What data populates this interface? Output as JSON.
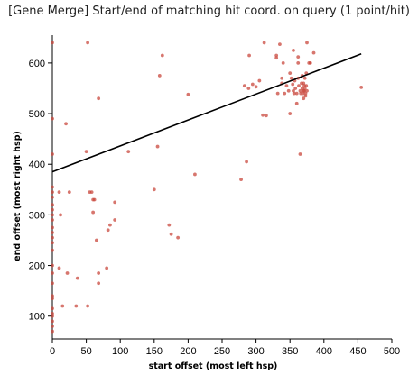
{
  "chart_data": {
    "type": "scatter",
    "title": "[Gene Merge] Start/end of matching hit coord. on query (1 point/hit)",
    "xlabel": "start offset (most left hsp)",
    "ylabel": "end offset (most right hsp)",
    "xlim": [
      0,
      500
    ],
    "ylim": [
      55,
      655
    ],
    "xticks": [
      0,
      50,
      100,
      150,
      200,
      250,
      300,
      350,
      400,
      450,
      500
    ],
    "yticks": [
      100,
      200,
      300,
      400,
      500,
      600
    ],
    "regression_line": {
      "x": [
        0,
        455
      ],
      "y": [
        385,
        618
      ]
    },
    "series": [
      {
        "values": [
          [
            0,
            70
          ],
          [
            0,
            80
          ],
          [
            0,
            90
          ],
          [
            0,
            100
          ],
          [
            0,
            105
          ],
          [
            0,
            115
          ],
          [
            0,
            135
          ],
          [
            0,
            140
          ],
          [
            0,
            165
          ],
          [
            0,
            185
          ],
          [
            0,
            200
          ],
          [
            0,
            230
          ],
          [
            0,
            245
          ],
          [
            0,
            255
          ],
          [
            0,
            265
          ],
          [
            0,
            275
          ],
          [
            0,
            290
          ],
          [
            0,
            300
          ],
          [
            0,
            310
          ],
          [
            0,
            320
          ],
          [
            0,
            335
          ],
          [
            0,
            345
          ],
          [
            0,
            355
          ],
          [
            0,
            420
          ],
          [
            0,
            490
          ],
          [
            0,
            640
          ],
          [
            10,
            195
          ],
          [
            10,
            345
          ],
          [
            12,
            300
          ],
          [
            15,
            120
          ],
          [
            20,
            480
          ],
          [
            22,
            185
          ],
          [
            25,
            345
          ],
          [
            35,
            120
          ],
          [
            37,
            175
          ],
          [
            50,
            425
          ],
          [
            52,
            640
          ],
          [
            52,
            120
          ],
          [
            55,
            345
          ],
          [
            58,
            345
          ],
          [
            60,
            330
          ],
          [
            60,
            305
          ],
          [
            62,
            330
          ],
          [
            65,
            250
          ],
          [
            68,
            185
          ],
          [
            68,
            165
          ],
          [
            68,
            530
          ],
          [
            80,
            195
          ],
          [
            82,
            270
          ],
          [
            85,
            280
          ],
          [
            92,
            325
          ],
          [
            92,
            290
          ],
          [
            112,
            425
          ],
          [
            150,
            350
          ],
          [
            155,
            435
          ],
          [
            158,
            575
          ],
          [
            162,
            615
          ],
          [
            172,
            280
          ],
          [
            175,
            262
          ],
          [
            185,
            255
          ],
          [
            200,
            538
          ],
          [
            210,
            380
          ],
          [
            278,
            370
          ],
          [
            283,
            555
          ],
          [
            286,
            405
          ],
          [
            289,
            550
          ],
          [
            290,
            615
          ],
          [
            295,
            558
          ],
          [
            300,
            553
          ],
          [
            305,
            565
          ],
          [
            310,
            497
          ],
          [
            312,
            640
          ],
          [
            315,
            496
          ],
          [
            330,
            615
          ],
          [
            330,
            610
          ],
          [
            332,
            540
          ],
          [
            335,
            637
          ],
          [
            338,
            570
          ],
          [
            338,
            560
          ],
          [
            340,
            600
          ],
          [
            342,
            540
          ],
          [
            345,
            555
          ],
          [
            348,
            545
          ],
          [
            350,
            580
          ],
          [
            350,
            500
          ],
          [
            352,
            570
          ],
          [
            354,
            558
          ],
          [
            355,
            625
          ],
          [
            355,
            545
          ],
          [
            356,
            540
          ],
          [
            357,
            565
          ],
          [
            358,
            550
          ],
          [
            360,
            540
          ],
          [
            360,
            520
          ],
          [
            362,
            612
          ],
          [
            362,
            600
          ],
          [
            362,
            570
          ],
          [
            363,
            555
          ],
          [
            365,
            420
          ],
          [
            365,
            545
          ],
          [
            366,
            540
          ],
          [
            367,
            560
          ],
          [
            368,
            575
          ],
          [
            368,
            550
          ],
          [
            369,
            540
          ],
          [
            370,
            545
          ],
          [
            370,
            560
          ],
          [
            370,
            530
          ],
          [
            371,
            555
          ],
          [
            371,
            545
          ],
          [
            372,
            570
          ],
          [
            372,
            550
          ],
          [
            373,
            540
          ],
          [
            373,
            535
          ],
          [
            374,
            580
          ],
          [
            374,
            555
          ],
          [
            375,
            640
          ],
          [
            375,
            545
          ],
          [
            378,
            600
          ],
          [
            380,
            600
          ],
          [
            385,
            620
          ],
          [
            455,
            552
          ]
        ]
      }
    ]
  }
}
